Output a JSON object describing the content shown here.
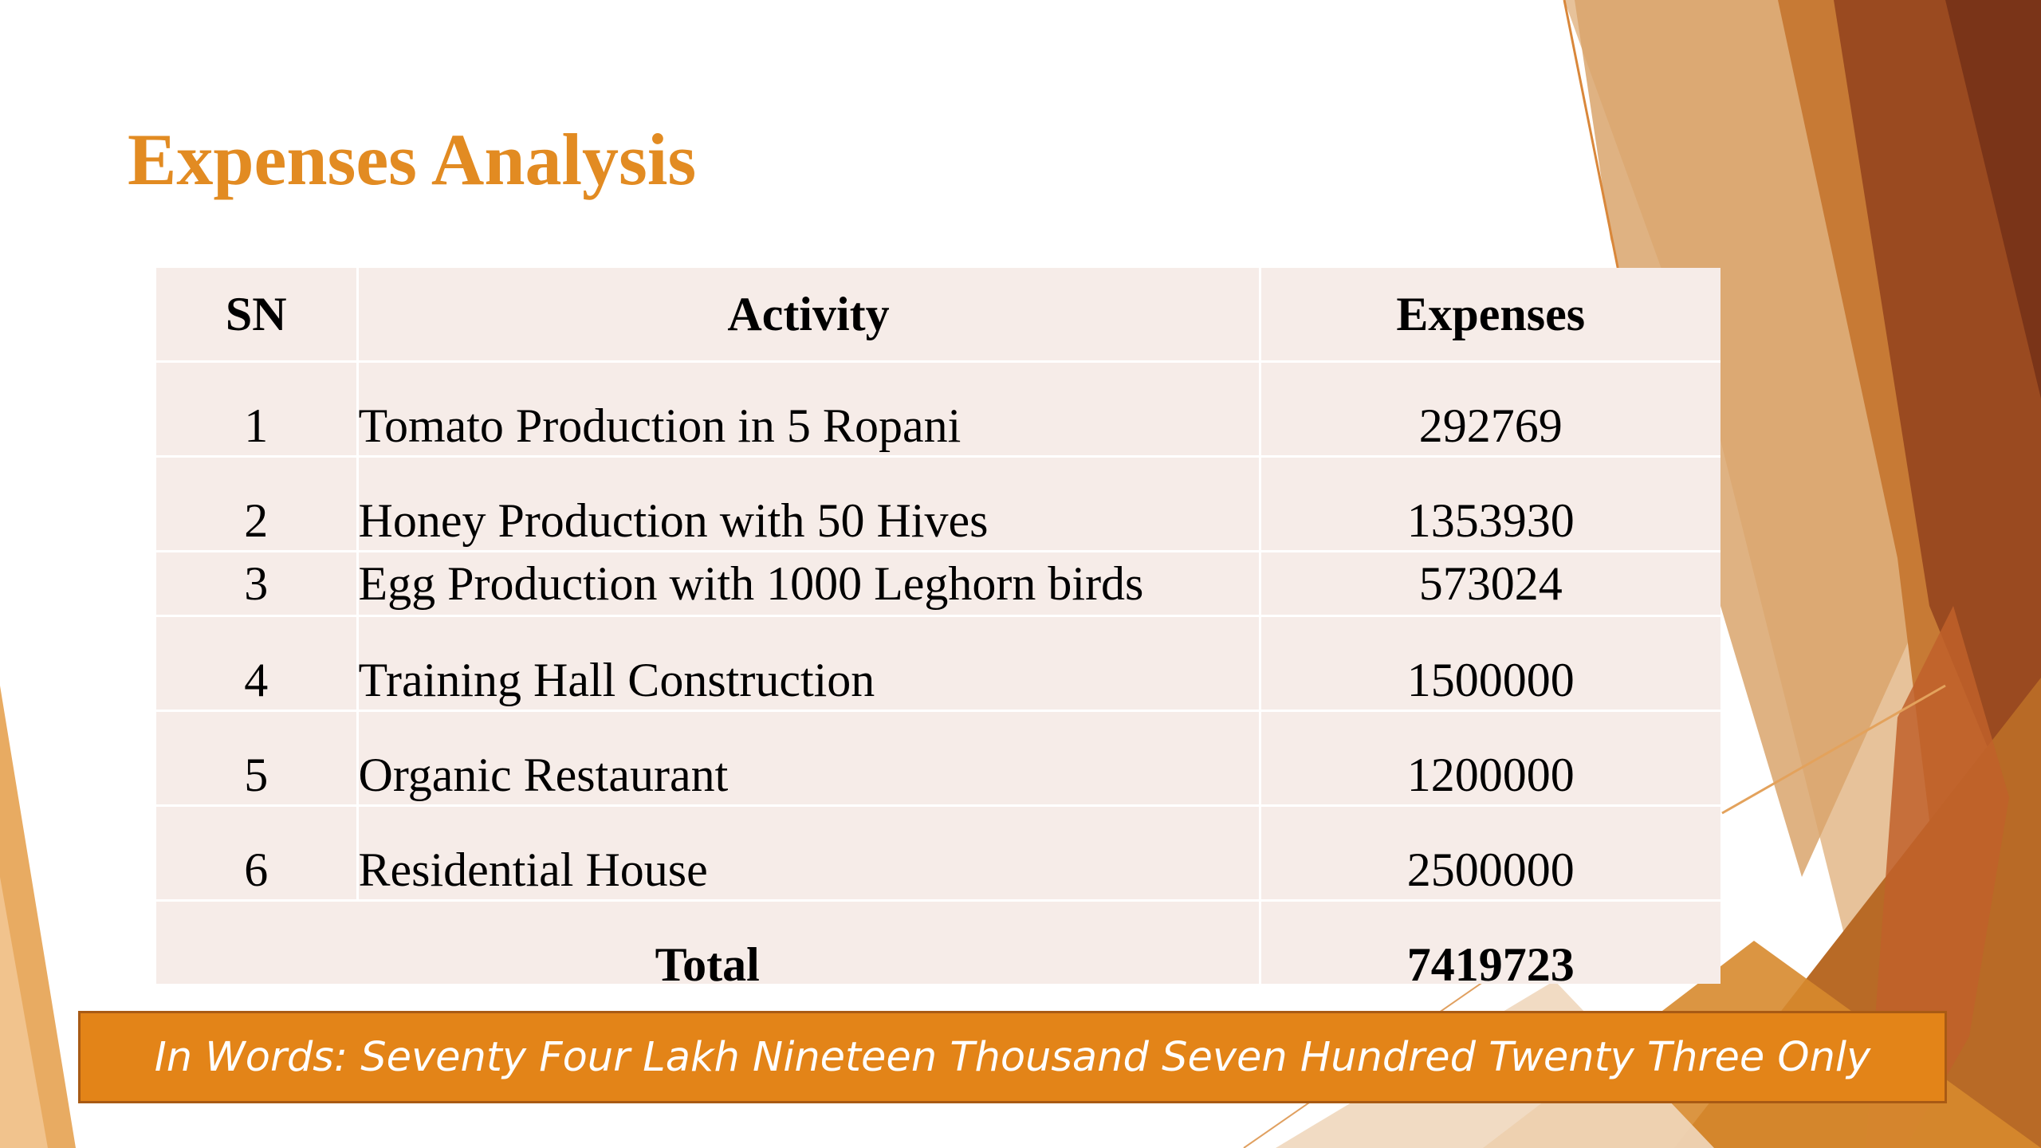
{
  "slide": {
    "title": "Expenses Analysis",
    "colors": {
      "title": "#e28b22",
      "banner": "#e38418",
      "table_fill": "#f6ece8",
      "accent_light": "#d8a36a",
      "accent_mid": "#c9732a",
      "accent_dark": "#8e3f1c"
    }
  },
  "table": {
    "headers": {
      "sn": "SN",
      "activity": "Activity",
      "expenses": "Expenses"
    },
    "rows": [
      {
        "sn": "1",
        "activity": "Tomato Production in 5 Ropani",
        "expenses": "292769"
      },
      {
        "sn": "2",
        "activity": "Honey Production with 50 Hives",
        "expenses": "1353930"
      },
      {
        "sn": "3",
        "activity": "Egg Production with 1000 Leghorn birds",
        "expenses": "573024"
      },
      {
        "sn": "4",
        "activity": "Training Hall Construction",
        "expenses": "1500000"
      },
      {
        "sn": "5",
        "activity": "Organic Restaurant",
        "expenses": "1200000"
      },
      {
        "sn": "6",
        "activity": "Residential House",
        "expenses": "2500000"
      }
    ],
    "total": {
      "label": "Total",
      "value": "7419723"
    }
  },
  "banner": {
    "text": "In Words: Seventy Four Lakh Nineteen Thousand Seven Hundred Twenty Three Only"
  }
}
